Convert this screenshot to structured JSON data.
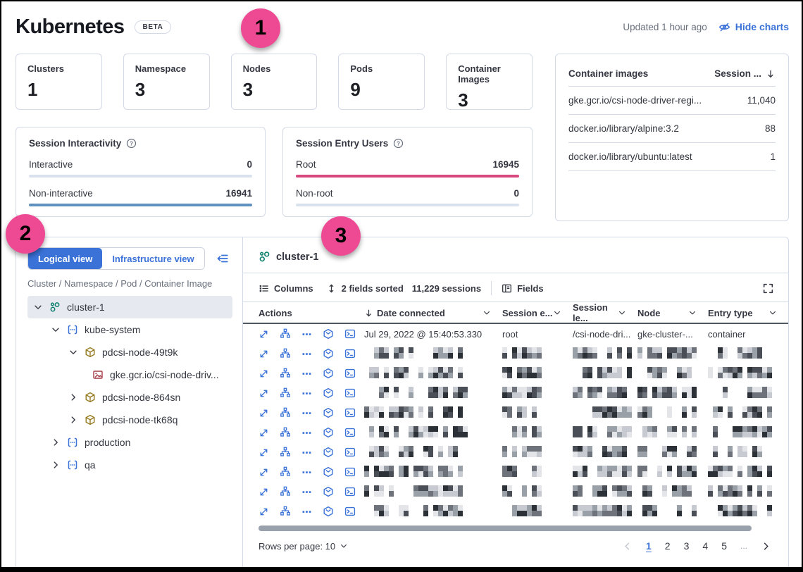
{
  "colors": {
    "accent_blue": "#3a72d8",
    "annotation_pink": "#ee4a94",
    "bar_blue": "#6092c0",
    "bar_pink": "#d9487f",
    "bar_light": "#d9e2ec",
    "panel_border": "#d3dae6",
    "cluster_icon_green": "#0d7f6d",
    "pod_icon_gold": "#97791f",
    "image_icon_red": "#a43b47"
  },
  "header": {
    "title": "Kubernetes",
    "beta_badge": "BETA",
    "updated": "Updated 1 hour ago",
    "hide_charts": "Hide charts"
  },
  "annotations": {
    "one": "1",
    "two": "2",
    "three": "3"
  },
  "stats": [
    {
      "label": "Clusters",
      "value": "1"
    },
    {
      "label": "Namespace",
      "value": "3"
    },
    {
      "label": "Nodes",
      "value": "3"
    },
    {
      "label": "Pods",
      "value": "9"
    },
    {
      "label": "Container Images",
      "value": "3"
    }
  ],
  "container_images": {
    "title": "Container images",
    "sessions_col": "Session ...",
    "rows": [
      {
        "image": "gke.gcr.io/csi-node-driver-regi...",
        "sessions": "11,040"
      },
      {
        "image": "docker.io/library/alpine:3.2",
        "sessions": "88"
      },
      {
        "image": "docker.io/library/ubuntu:latest",
        "sessions": "1"
      }
    ]
  },
  "session_interactivity": {
    "title": "Session Interactivity",
    "interactive_label": "Interactive",
    "interactive_value": "0",
    "noninteractive_label": "Non-interactive",
    "noninteractive_value": "16941"
  },
  "session_entry_users": {
    "title": "Session Entry Users",
    "root_label": "Root",
    "root_value": "16945",
    "nonroot_label": "Non-root",
    "nonroot_value": "0"
  },
  "tree": {
    "logical_view": "Logical view",
    "infrastructure_view": "Infrastructure view",
    "breadcrumb": "Cluster / Namespace / Pod / Container Image",
    "items": [
      {
        "label": "cluster-1",
        "type": "cluster",
        "level": 0,
        "expanded": true,
        "selected": true
      },
      {
        "label": "kube-system",
        "type": "namespace",
        "level": 1,
        "expanded": true
      },
      {
        "label": "pdcsi-node-49t9k",
        "type": "pod",
        "level": 2,
        "expanded": true
      },
      {
        "label": "gke.gcr.io/csi-node-driv...",
        "type": "container-image",
        "level": 3
      },
      {
        "label": "pdcsi-node-864sn",
        "type": "pod",
        "level": 2,
        "expanded": false
      },
      {
        "label": "pdcsi-node-tk68q",
        "type": "pod",
        "level": 2,
        "expanded": false
      },
      {
        "label": "production",
        "type": "namespace",
        "level": 1,
        "expanded": false
      },
      {
        "label": "qa",
        "type": "namespace",
        "level": 1,
        "expanded": false
      }
    ]
  },
  "table": {
    "title": "cluster-1",
    "toolbar": {
      "columns": "Columns",
      "sorted": "2 fields sorted",
      "sessions": "11,229 sessions",
      "fields": "Fields"
    },
    "columns": {
      "actions": "Actions",
      "date": "Date connected",
      "session_entry": "Session e...",
      "session_leader": "Session le...",
      "node": "Node",
      "entry_type": "Entry type"
    },
    "row1": {
      "date": "Jul 29, 2022 @ 15:40:53.330",
      "session_entry": "root",
      "session_leader": "/csi-node-dri...",
      "node": "gke-cluster-...",
      "entry_type": "container"
    },
    "redacted_rows": 9,
    "footer": {
      "rows_per_page": "Rows per page: 10",
      "pages": [
        "1",
        "2",
        "3",
        "4",
        "5"
      ],
      "ellipsis": "..."
    }
  },
  "icons": {
    "hide_charts": "eye-slash-icon",
    "help": "question-circle-icon",
    "sort_desc": "arrow-down-icon",
    "sortable": "sort-up-down-icon",
    "row_actions": [
      "expand-icon",
      "analyzer-icon",
      "more-dots-icon",
      "session-cube-icon",
      "terminal-icon"
    ]
  }
}
